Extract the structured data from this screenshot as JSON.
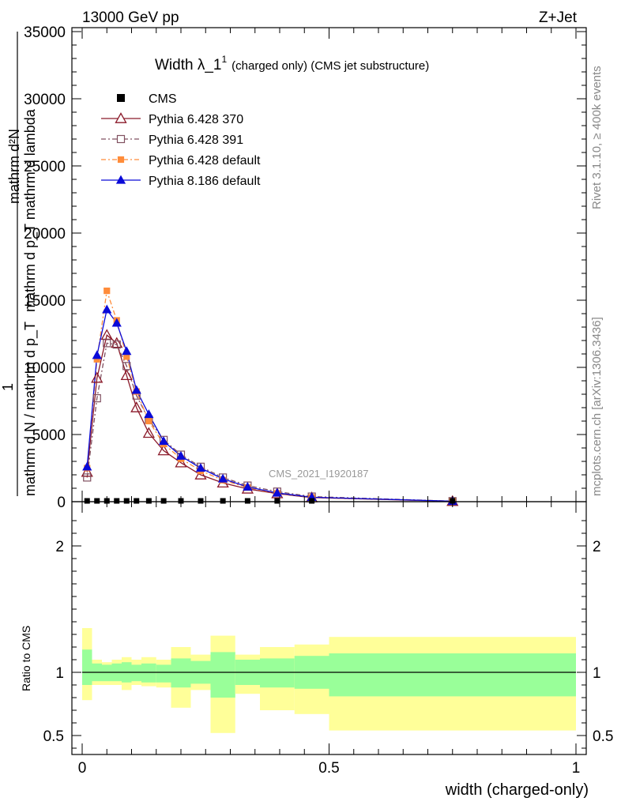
{
  "chart_data": {
    "type": "line",
    "header_left": "13000 GeV pp",
    "header_right": "Z+Jet",
    "title": "Width λ_1",
    "title_sup": "1",
    "title_small": "(charged only) (CMS jet substructure)",
    "ylabel_top": "mathrm d²N",
    "ylabel_top2": "mathrm d p_T mathrm d lambda",
    "ylabel_one": "1",
    "ylabel_bottom": "mathrm d N / mathrm d p_T",
    "ratio_ylabel": "Ratio to CMS",
    "xlabel": "width (charged-only)",
    "watermark": "CMS_2021_I1920187",
    "side_rivet": "Rivet 3.1.10, ≥ 400k events",
    "side_mcplots": "mcplots.cern.ch [arXiv:1306.3436]",
    "xlim": [
      0,
      1
    ],
    "ylim": [
      0,
      35000
    ],
    "ratio_ylim": [
      0.35,
      2.35
    ],
    "main_yticks": [
      {
        "v": 0,
        "label": "0"
      },
      {
        "v": 5000,
        "label": "5000"
      },
      {
        "v": 10000,
        "label": "10000"
      },
      {
        "v": 15000,
        "label": "15000"
      },
      {
        "v": 20000,
        "label": "20000"
      },
      {
        "v": 25000,
        "label": "25000"
      },
      {
        "v": 30000,
        "label": "30000"
      },
      {
        "v": 35000,
        "label": "35000"
      }
    ],
    "ratio_yticks": [
      {
        "v": 0.5,
        "label": "0.5"
      },
      {
        "v": 1,
        "label": "1"
      },
      {
        "v": 2,
        "label": "2"
      }
    ],
    "xticks": [
      {
        "v": 0,
        "label": "0"
      },
      {
        "v": 0.5,
        "label": "0.5"
      },
      {
        "v": 1,
        "label": "1"
      }
    ],
    "ratio_bands": [
      {
        "x0": 0.0,
        "x1": 0.02,
        "yel": [
          0.78,
          1.35
        ],
        "grn": [
          0.9,
          1.18
        ]
      },
      {
        "x0": 0.02,
        "x1": 0.04,
        "yel": [
          0.9,
          1.1
        ],
        "grn": [
          0.93,
          1.07
        ]
      },
      {
        "x0": 0.04,
        "x1": 0.06,
        "yel": [
          0.9,
          1.08
        ],
        "grn": [
          0.93,
          1.06
        ]
      },
      {
        "x0": 0.06,
        "x1": 0.08,
        "yel": [
          0.9,
          1.1
        ],
        "grn": [
          0.93,
          1.07
        ]
      },
      {
        "x0": 0.08,
        "x1": 0.1,
        "yel": [
          0.86,
          1.12
        ],
        "grn": [
          0.92,
          1.08
        ]
      },
      {
        "x0": 0.1,
        "x1": 0.12,
        "yel": [
          0.9,
          1.1
        ],
        "grn": [
          0.93,
          1.06
        ]
      },
      {
        "x0": 0.12,
        "x1": 0.15,
        "yel": [
          0.89,
          1.12
        ],
        "grn": [
          0.92,
          1.07
        ]
      },
      {
        "x0": 0.15,
        "x1": 0.18,
        "yel": [
          0.88,
          1.1
        ],
        "grn": [
          0.92,
          1.06
        ]
      },
      {
        "x0": 0.18,
        "x1": 0.22,
        "yel": [
          0.72,
          1.2
        ],
        "grn": [
          0.88,
          1.11
        ]
      },
      {
        "x0": 0.22,
        "x1": 0.26,
        "yel": [
          0.86,
          1.14
        ],
        "grn": [
          0.91,
          1.09
        ]
      },
      {
        "x0": 0.26,
        "x1": 0.31,
        "yel": [
          0.52,
          1.29
        ],
        "grn": [
          0.8,
          1.16
        ]
      },
      {
        "x0": 0.31,
        "x1": 0.36,
        "yel": [
          0.83,
          1.14
        ],
        "grn": [
          0.9,
          1.1
        ]
      },
      {
        "x0": 0.36,
        "x1": 0.43,
        "yel": [
          0.7,
          1.2
        ],
        "grn": [
          0.88,
          1.11
        ]
      },
      {
        "x0": 0.43,
        "x1": 0.5,
        "yel": [
          0.67,
          1.22
        ],
        "grn": [
          0.87,
          1.13
        ]
      },
      {
        "x0": 0.5,
        "x1": 1.0,
        "yel": [
          0.54,
          1.28
        ],
        "grn": [
          0.81,
          1.15
        ]
      }
    ],
    "x": [
      0.01,
      0.03,
      0.05,
      0.07,
      0.09,
      0.11,
      0.135,
      0.165,
      0.2,
      0.24,
      0.285,
      0.335,
      0.395,
      0.465,
      0.75
    ],
    "cms_values": [
      0,
      0,
      0,
      0,
      0,
      0,
      0,
      0,
      0,
      0,
      0,
      0,
      0,
      0,
      0
    ],
    "series": [
      {
        "name": "CMS",
        "values": [
          0,
          0,
          0,
          0,
          0,
          0,
          0,
          0,
          0,
          0,
          0,
          0,
          0,
          0,
          0
        ],
        "color": "#000000"
      },
      {
        "name": "Pythia 6.428 370",
        "values": [
          2200,
          9200,
          12400,
          11800,
          9400,
          7000,
          5100,
          3800,
          2900,
          2000,
          1400,
          950,
          600,
          300,
          30
        ],
        "color": "#8b1a2a"
      },
      {
        "name": "Pythia 6.428 391",
        "values": [
          1800,
          7700,
          11800,
          11700,
          10100,
          7900,
          6100,
          4600,
          3500,
          2600,
          1800,
          1200,
          750,
          380,
          40
        ],
        "color": "#805060"
      },
      {
        "name": "Pythia 6.428 default",
        "values": [
          2500,
          10600,
          15700,
          13500,
          10800,
          8200,
          6000,
          4300,
          3200,
          2300,
          1600,
          1050,
          620,
          320,
          35
        ],
        "color": "#ff8c3a"
      },
      {
        "name": "Pythia 8.186 default",
        "values": [
          2600,
          10900,
          14300,
          13300,
          11200,
          8300,
          6500,
          4500,
          3400,
          2500,
          1700,
          1100,
          650,
          330,
          38
        ],
        "color": "#0a0ad8"
      }
    ]
  }
}
